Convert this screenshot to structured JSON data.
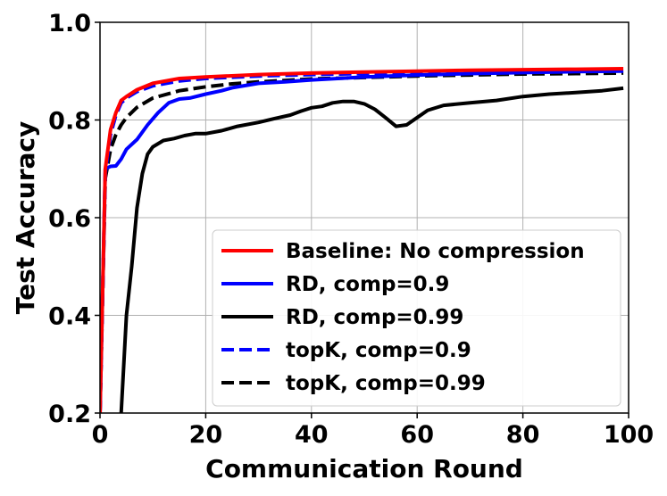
{
  "chart_data": {
    "type": "line",
    "title": "",
    "xlabel": "Communication Round",
    "ylabel": "Test Accuracy",
    "xlim": [
      0,
      100
    ],
    "ylim": [
      0.2,
      1.0
    ],
    "xticks": [
      0,
      20,
      40,
      60,
      80,
      100
    ],
    "xtick_labels": [
      "0",
      "20",
      "40",
      "60",
      "80",
      "100"
    ],
    "yticks": [
      0.2,
      0.4,
      0.6,
      0.8,
      1.0
    ],
    "ytick_labels": [
      "0.2",
      "0.4",
      "0.6",
      "0.8",
      "1.0"
    ],
    "grid": true,
    "legend_position": "lower-right",
    "series": [
      {
        "name": "Baseline: No compression",
        "color": "#ff0000",
        "style": "solid",
        "points": [
          [
            0,
            0.2
          ],
          [
            1,
            0.7
          ],
          [
            2,
            0.78
          ],
          [
            3,
            0.815
          ],
          [
            4,
            0.84
          ],
          [
            5,
            0.848
          ],
          [
            7,
            0.862
          ],
          [
            10,
            0.875
          ],
          [
            15,
            0.885
          ],
          [
            20,
            0.888
          ],
          [
            30,
            0.893
          ],
          [
            40,
            0.896
          ],
          [
            50,
            0.898
          ],
          [
            60,
            0.9
          ],
          [
            70,
            0.902
          ],
          [
            80,
            0.903
          ],
          [
            90,
            0.904
          ],
          [
            99,
            0.905
          ]
        ]
      },
      {
        "name": "RD, comp=0.9",
        "color": "#0000ff",
        "style": "solid",
        "points": [
          [
            0,
            0.2
          ],
          [
            1,
            0.7
          ],
          [
            2,
            0.705
          ],
          [
            3,
            0.706
          ],
          [
            4,
            0.72
          ],
          [
            5,
            0.74
          ],
          [
            7,
            0.76
          ],
          [
            9,
            0.79
          ],
          [
            11,
            0.815
          ],
          [
            13,
            0.835
          ],
          [
            15,
            0.843
          ],
          [
            17,
            0.845
          ],
          [
            20,
            0.853
          ],
          [
            23,
            0.86
          ],
          [
            25,
            0.866
          ],
          [
            30,
            0.875
          ],
          [
            35,
            0.878
          ],
          [
            40,
            0.882
          ],
          [
            45,
            0.885
          ],
          [
            50,
            0.888
          ],
          [
            60,
            0.892
          ],
          [
            70,
            0.895
          ],
          [
            80,
            0.897
          ],
          [
            90,
            0.899
          ],
          [
            99,
            0.9
          ]
        ]
      },
      {
        "name": "RD, comp=0.99",
        "color": "#000000",
        "style": "solid",
        "points": [
          [
            4,
            0.2
          ],
          [
            5,
            0.4
          ],
          [
            6,
            0.5
          ],
          [
            7,
            0.62
          ],
          [
            8,
            0.69
          ],
          [
            9,
            0.73
          ],
          [
            10,
            0.745
          ],
          [
            12,
            0.758
          ],
          [
            14,
            0.762
          ],
          [
            16,
            0.768
          ],
          [
            18,
            0.772
          ],
          [
            20,
            0.772
          ],
          [
            23,
            0.778
          ],
          [
            26,
            0.787
          ],
          [
            30,
            0.795
          ],
          [
            33,
            0.803
          ],
          [
            36,
            0.81
          ],
          [
            38,
            0.818
          ],
          [
            40,
            0.825
          ],
          [
            42,
            0.828
          ],
          [
            44,
            0.835
          ],
          [
            46,
            0.838
          ],
          [
            48,
            0.838
          ],
          [
            50,
            0.833
          ],
          [
            52,
            0.822
          ],
          [
            54,
            0.805
          ],
          [
            56,
            0.787
          ],
          [
            58,
            0.79
          ],
          [
            60,
            0.805
          ],
          [
            62,
            0.82
          ],
          [
            65,
            0.83
          ],
          [
            70,
            0.835
          ],
          [
            75,
            0.84
          ],
          [
            80,
            0.848
          ],
          [
            85,
            0.853
          ],
          [
            90,
            0.856
          ],
          [
            95,
            0.86
          ],
          [
            99,
            0.865
          ]
        ]
      },
      {
        "name": "topK, comp=0.9",
        "color": "#0000ff",
        "style": "dashed",
        "points": [
          [
            0,
            0.2
          ],
          [
            1,
            0.69
          ],
          [
            2,
            0.77
          ],
          [
            3,
            0.81
          ],
          [
            4,
            0.835
          ],
          [
            5,
            0.845
          ],
          [
            7,
            0.858
          ],
          [
            10,
            0.87
          ],
          [
            15,
            0.88
          ],
          [
            20,
            0.885
          ],
          [
            30,
            0.89
          ],
          [
            40,
            0.893
          ],
          [
            50,
            0.895
          ],
          [
            60,
            0.897
          ],
          [
            70,
            0.899
          ],
          [
            80,
            0.9
          ],
          [
            90,
            0.901
          ],
          [
            99,
            0.902
          ]
        ]
      },
      {
        "name": "topK, comp=0.99",
        "color": "#000000",
        "style": "dashed",
        "points": [
          [
            0,
            0.2
          ],
          [
            1,
            0.68
          ],
          [
            2,
            0.74
          ],
          [
            3,
            0.77
          ],
          [
            4,
            0.79
          ],
          [
            5,
            0.805
          ],
          [
            7,
            0.826
          ],
          [
            10,
            0.845
          ],
          [
            15,
            0.86
          ],
          [
            20,
            0.868
          ],
          [
            25,
            0.874
          ],
          [
            30,
            0.878
          ],
          [
            40,
            0.884
          ],
          [
            50,
            0.887
          ],
          [
            60,
            0.89
          ],
          [
            70,
            0.892
          ],
          [
            80,
            0.894
          ],
          [
            90,
            0.895
          ],
          [
            99,
            0.896
          ]
        ]
      }
    ]
  }
}
